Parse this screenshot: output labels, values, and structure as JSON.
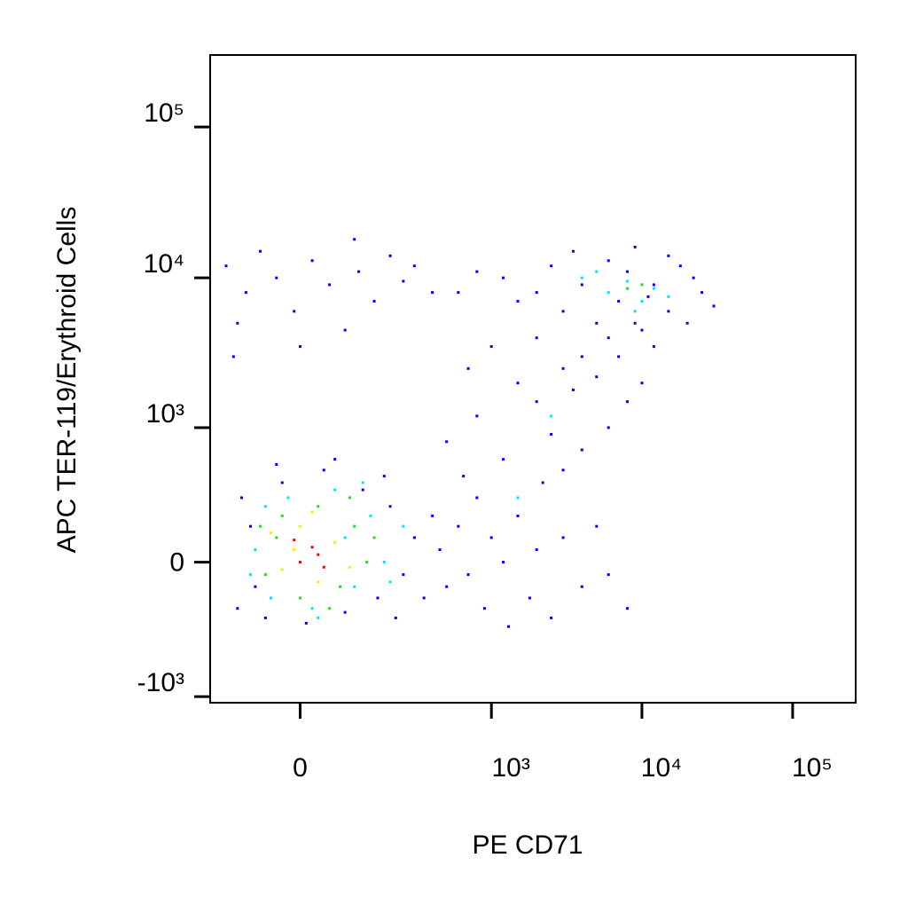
{
  "chart_data": {
    "type": "scatter",
    "x_label": "PE CD71",
    "y_label": "APC  TER-119/Erythroid Cells",
    "xscale": "biexponential",
    "yscale": "biexponential",
    "xlim": [
      -200,
      262000
    ],
    "ylim": [
      -1100,
      300000
    ],
    "xticks": [
      0,
      {
        "value": 1000,
        "label": "10³"
      },
      {
        "value": 10000,
        "label": "10⁴"
      },
      {
        "value": 100000,
        "label": "10⁵"
      }
    ],
    "yticks": [
      {
        "value": -1000,
        "label": "-10³"
      },
      0,
      {
        "value": 1000,
        "label": "10³"
      },
      {
        "value": 10000,
        "label": "10⁴"
      },
      {
        "value": 100000,
        "label": "10⁵"
      }
    ],
    "series": [
      {
        "color": "#0000ff",
        "x": [
          -120,
          -90,
          -60,
          -30,
          10,
          40,
          80,
          120,
          160,
          200,
          250,
          300,
          -110,
          -80,
          180,
          220,
          60,
          -40,
          350,
          400,
          450,
          500,
          600,
          700,
          800,
          900,
          1000,
          1200,
          1500,
          1800,
          2000,
          2500,
          3000,
          4000,
          5000,
          6000,
          8000,
          2200,
          1300,
          650,
          500,
          800,
          1200,
          1500,
          2000,
          2500,
          3000,
          3500,
          4000,
          5000,
          6000,
          7000,
          8000,
          9000,
          1000,
          700,
          2000,
          4000,
          6000,
          3000,
          10000,
          12000,
          2000,
          2500,
          3000,
          3500,
          4000,
          5000,
          6000,
          7000,
          8000,
          10000,
          12000,
          15000,
          18000,
          20000,
          25000,
          30000,
          15000,
          9000,
          11000,
          22000,
          1200,
          1500,
          800,
          600,
          -150,
          -120,
          -100,
          -70,
          -40,
          -10,
          20,
          50,
          80,
          110,
          150,
          200,
          250,
          300,
          400,
          -130,
          0,
          100
        ],
        "values": [
          -200,
          150,
          -250,
          400,
          -280,
          500,
          -220,
          350,
          -150,
          250,
          -50,
          100,
          300,
          -100,
          450,
          -250,
          600,
          550,
          -150,
          200,
          50,
          -100,
          150,
          -50,
          300,
          -200,
          100,
          0,
          200,
          -150,
          50,
          -250,
          100,
          -100,
          150,
          -50,
          -200,
          400,
          -300,
          450,
          800,
          1200,
          600,
          2000,
          1500,
          900,
          2500,
          1800,
          3000,
          2200,
          4000,
          3000,
          1500,
          5000,
          3500,
          2500,
          4000,
          700,
          1000,
          500,
          2000,
          3500,
          8000,
          12000,
          6000,
          15000,
          9000,
          5000,
          13000,
          7000,
          11000,
          4500,
          9000,
          6000,
          12000,
          5000,
          8000,
          6500,
          14000,
          16000,
          7500,
          10000,
          10000,
          7000,
          11000,
          8000,
          12000,
          5000,
          8000,
          15000,
          10000,
          6000,
          13000,
          9000,
          4500,
          11000,
          7000,
          14000,
          9500,
          12000,
          8000,
          3000,
          3500,
          18000
        ]
      },
      {
        "color": "#00e5ff",
        "x": [
          -80,
          -50,
          -20,
          20,
          60,
          100,
          140,
          180,
          -60,
          120,
          200,
          250,
          30,
          80,
          -90,
          4000,
          6000,
          8000,
          10000,
          12000,
          5000,
          15000,
          9000,
          1500,
          2500
        ],
        "values": [
          50,
          -150,
          300,
          -200,
          350,
          -100,
          200,
          0,
          250,
          400,
          -80,
          150,
          -250,
          100,
          -50,
          10000,
          8000,
          9500,
          7000,
          8500,
          11000,
          7500,
          6000,
          300,
          1200
        ]
      },
      {
        "color": "#22dd22",
        "x": [
          -60,
          -30,
          0,
          30,
          70,
          100,
          130,
          -40,
          50,
          150,
          -70,
          90,
          8000,
          10000
        ],
        "values": [
          -50,
          200,
          -150,
          250,
          -100,
          150,
          0,
          100,
          -200,
          100,
          150,
          300,
          8500,
          9000
        ]
      },
      {
        "color": "#f0f000",
        "x": [
          -30,
          0,
          30,
          60,
          -10,
          90,
          20,
          -50
        ],
        "values": [
          -30,
          150,
          -80,
          80,
          50,
          -20,
          220,
          120
        ]
      },
      {
        "color": "#ff0000",
        "x": [
          0,
          20,
          40,
          -10,
          30
        ],
        "values": [
          0,
          60,
          -20,
          90,
          30
        ]
      }
    ]
  }
}
